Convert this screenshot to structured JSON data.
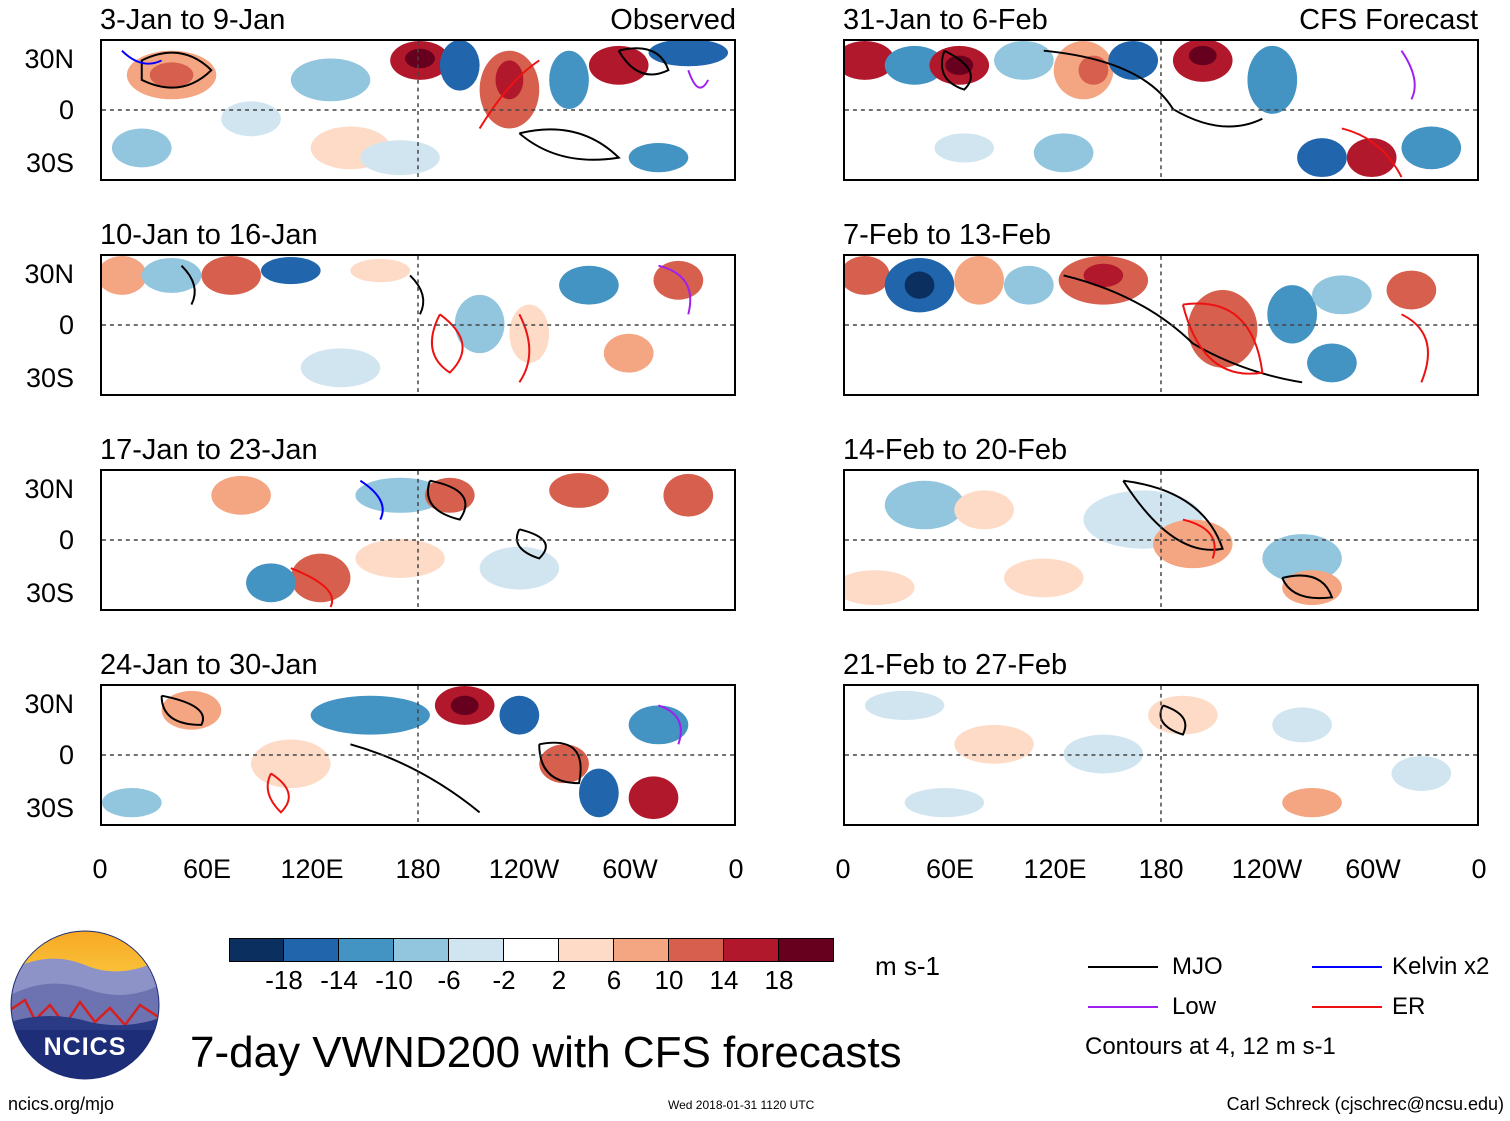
{
  "panels": [
    {
      "title": "3-Jan to 9-Jan",
      "tag": "Observed"
    },
    {
      "title": "31-Jan to 6-Feb",
      "tag": "CFS Forecast"
    },
    {
      "title": "10-Jan to 16-Jan",
      "tag": ""
    },
    {
      "title": "7-Feb to 13-Feb",
      "tag": ""
    },
    {
      "title": "17-Jan to 23-Jan",
      "tag": ""
    },
    {
      "title": "14-Feb to 20-Feb",
      "tag": ""
    },
    {
      "title": "24-Jan to 30-Jan",
      "tag": ""
    },
    {
      "title": "21-Feb to 27-Feb",
      "tag": ""
    }
  ],
  "lat_labels": [
    "30N",
    "0",
    "30S"
  ],
  "lon_labels": [
    "0",
    "60E",
    "120E",
    "180",
    "120W",
    "60W",
    "0"
  ],
  "colorbar": {
    "colors": [
      "#0b2f5e",
      "#2166ac",
      "#4393c3",
      "#92c5de",
      "#d1e5f0",
      "#ffffff",
      "#fddbc7",
      "#f4a582",
      "#d6604d",
      "#b2182b",
      "#67001f"
    ],
    "labels": [
      "-18",
      "-14",
      "-10",
      "-6",
      "-2",
      "2",
      "6",
      "10",
      "14",
      "18"
    ],
    "units": "m s-1"
  },
  "legend": {
    "items": [
      {
        "label": "MJO",
        "color": "#000000"
      },
      {
        "label": "Kelvin x2",
        "color": "#0000ff"
      },
      {
        "label": "Low",
        "color": "#a020f0"
      },
      {
        "label": "ER",
        "color": "#ee1111"
      }
    ],
    "note": "Contours at 4, 12 m s-1"
  },
  "logo": {
    "text": "NCICS"
  },
  "main_title": "7-day VWND200 with CFS forecasts",
  "footer": {
    "left": "ncics.org/mjo",
    "center": "Wed 2018-01-31 1120 UTC",
    "right": "Carl Schreck (cjschrec@ncsu.edu)"
  }
}
